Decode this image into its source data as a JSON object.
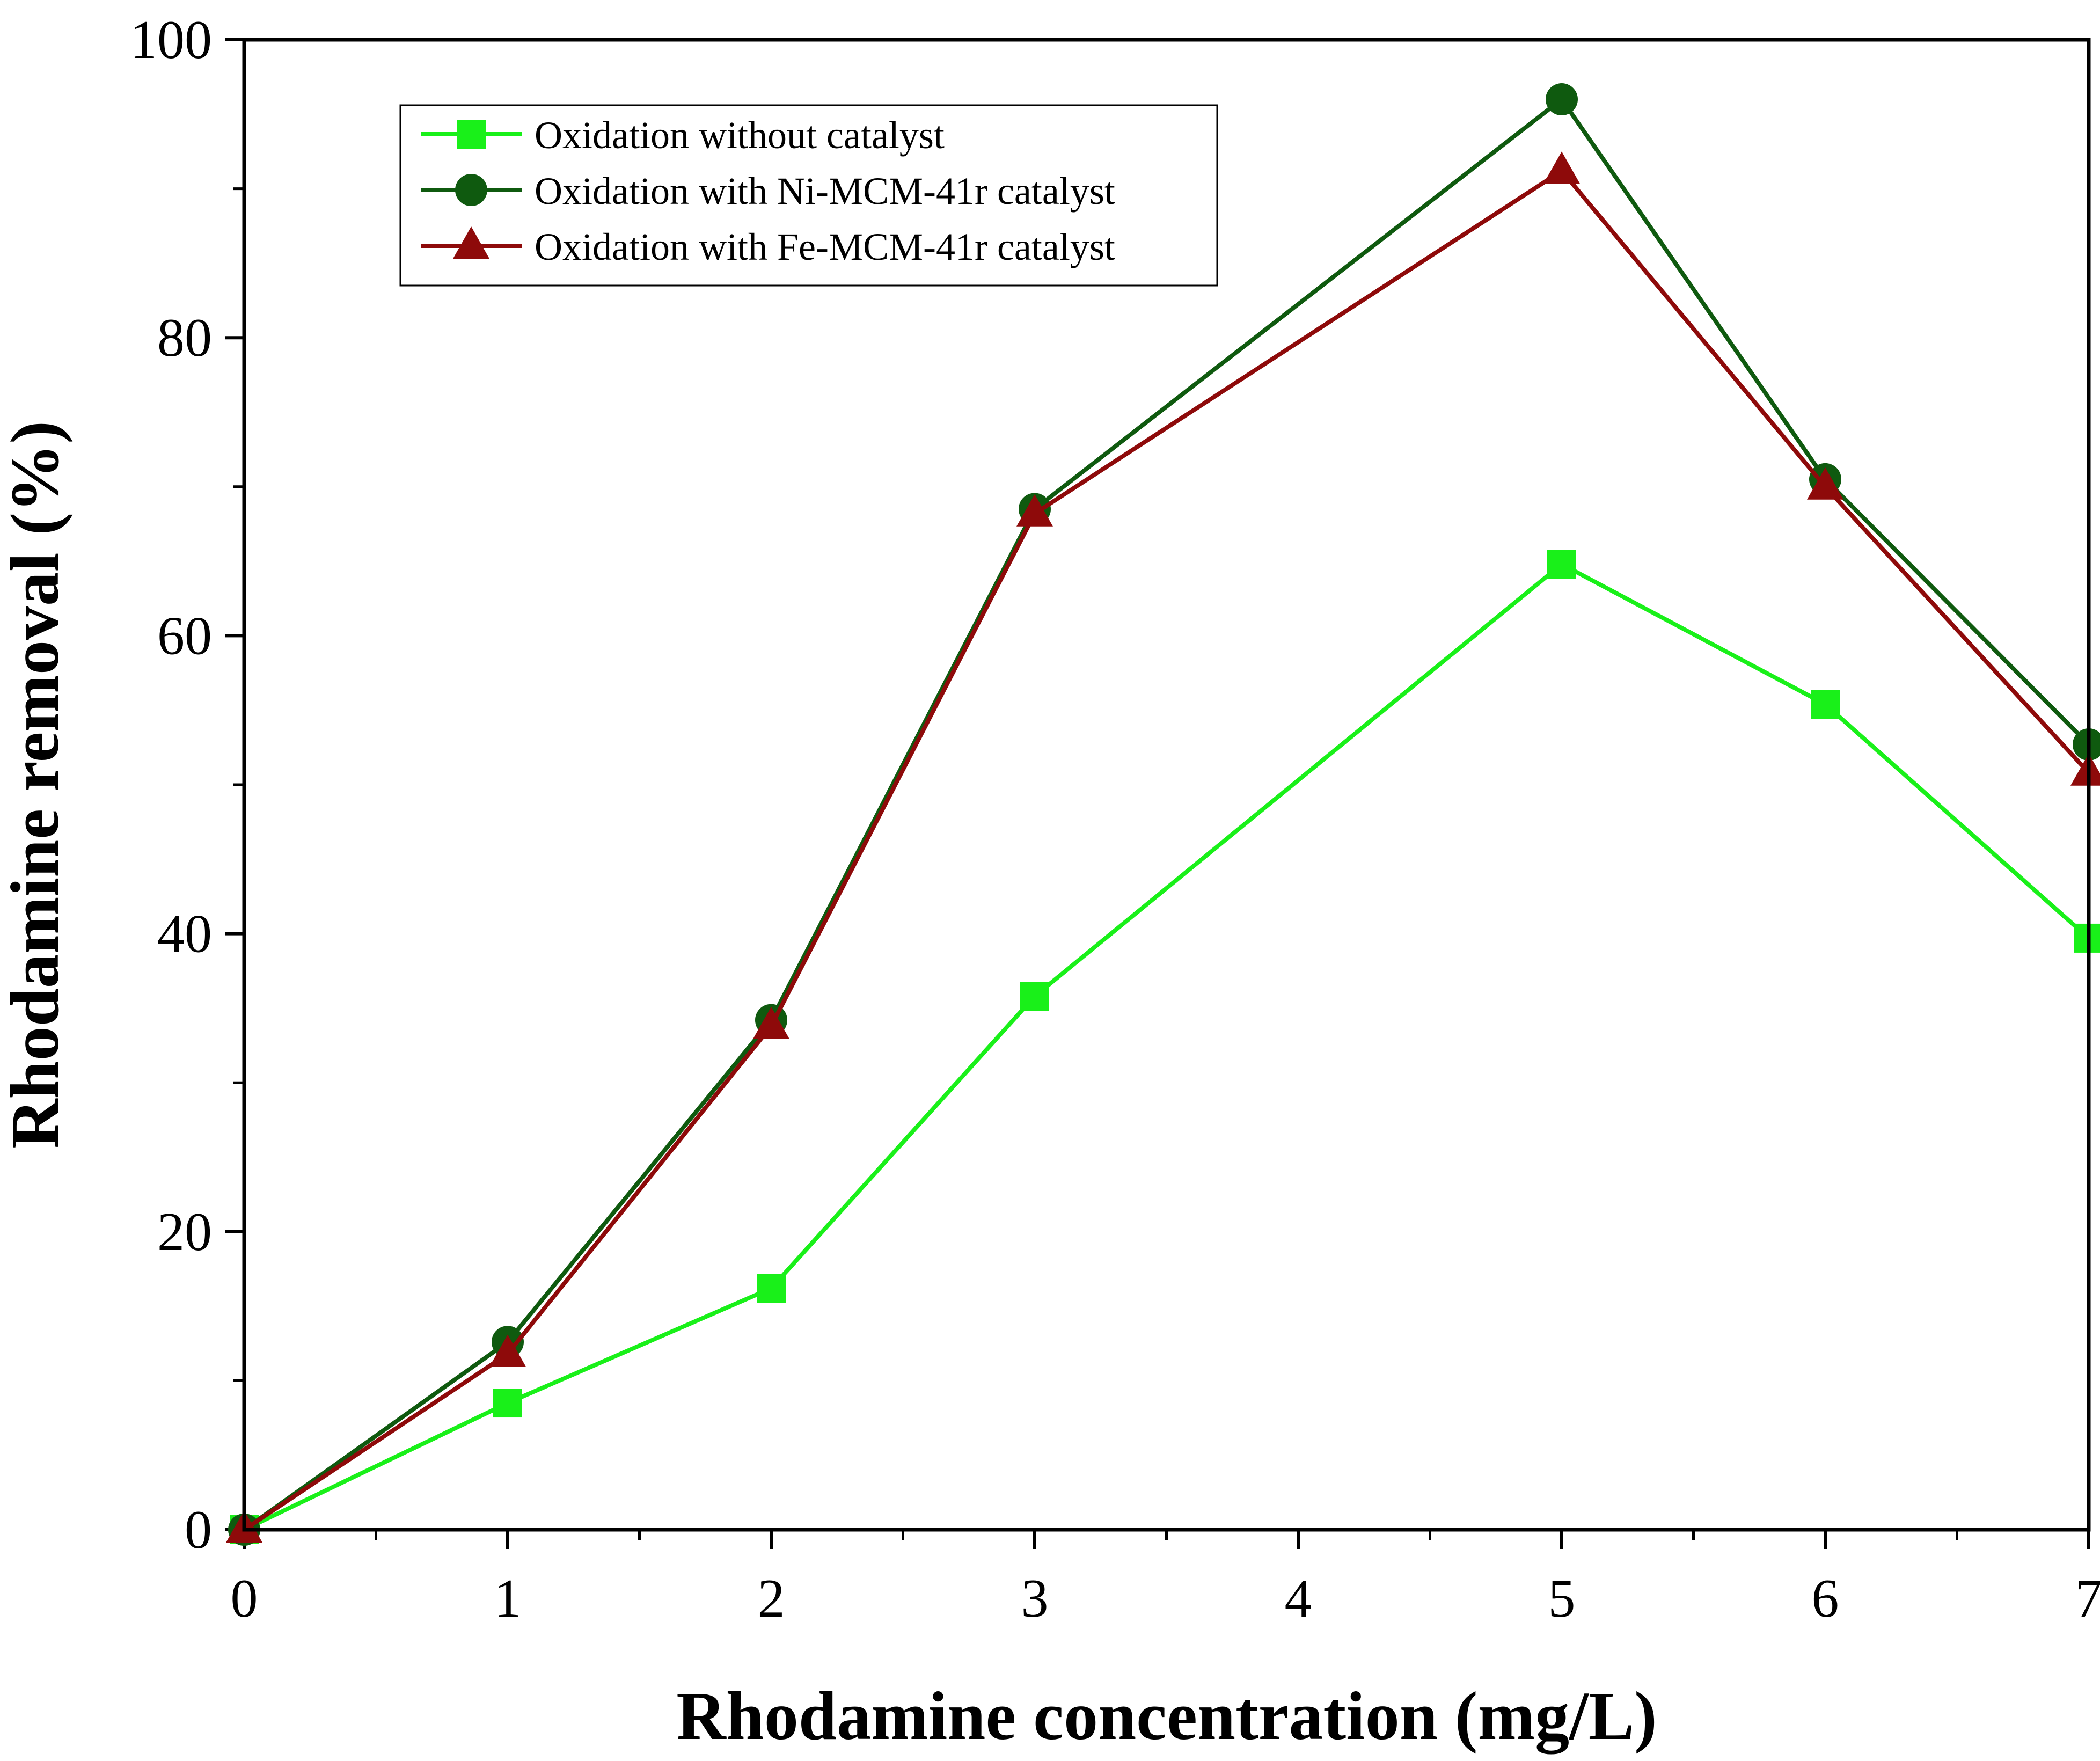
{
  "chart_data": {
    "type": "line",
    "title": "",
    "xlabel": "Rhodamine concentration (mg/L)",
    "ylabel": "Rhodamine removal (%)",
    "xlim": [
      0,
      7
    ],
    "ylim": [
      0,
      100
    ],
    "xticks": [
      "0",
      "1",
      "2",
      "3",
      "4",
      "5",
      "6",
      "7"
    ],
    "yticks": [
      "0",
      "20",
      "40",
      "60",
      "80",
      "100"
    ],
    "grid": false,
    "legend_position": "top-left",
    "series": [
      {
        "name": "Oxidation without catalyst",
        "marker": "square",
        "color": "#19F019",
        "x": [
          0,
          1,
          2,
          3,
          5,
          6,
          7
        ],
        "y": [
          0,
          8.5,
          16.2,
          35.8,
          64.8,
          55.4,
          39.7
        ]
      },
      {
        "name": "Oxidation with Ni-MCM-41r catalyst",
        "marker": "circle",
        "color": "#0F5A0F",
        "x": [
          0,
          1,
          2,
          3,
          5,
          6,
          7
        ],
        "y": [
          0,
          12.6,
          34.2,
          68.5,
          96.0,
          70.5,
          52.7
        ]
      },
      {
        "name": "Oxidation with Fe-MCM-41r catalyst",
        "marker": "triangle",
        "color": "#8E0A0A",
        "x": [
          0,
          1,
          2,
          3,
          5,
          6,
          7
        ],
        "y": [
          0,
          11.8,
          33.8,
          68.2,
          91.2,
          70.0,
          50.8
        ]
      }
    ]
  }
}
